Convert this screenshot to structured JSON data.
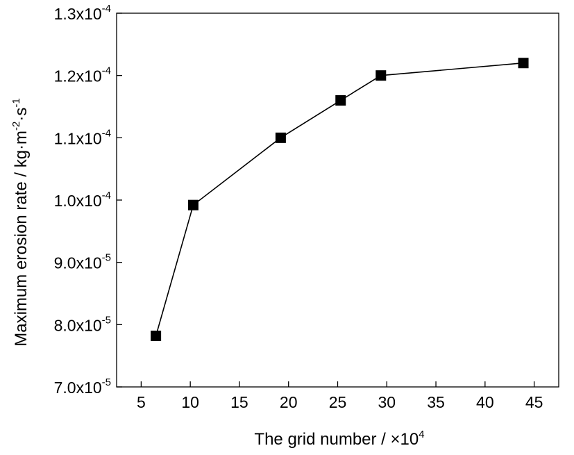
{
  "chart_data": {
    "type": "line",
    "xlabel": "The grid number / ×10",
    "xlabel_sup": "4",
    "ylabel_parts": [
      {
        "text": "Maximum erosion rate / kg·m",
        "sup": false
      },
      {
        "text": "-2",
        "sup": true
      },
      {
        "text": "·s",
        "sup": false
      },
      {
        "text": "-1",
        "sup": true
      }
    ],
    "xlim": [
      2.5,
      47.5
    ],
    "ylim": [
      7e-05,
      0.00013
    ],
    "x_ticks": [
      5,
      10,
      15,
      20,
      25,
      30,
      35,
      40,
      45
    ],
    "x_tick_labels": [
      "5",
      "10",
      "15",
      "20",
      "25",
      "30",
      "35",
      "40",
      "45"
    ],
    "y_ticks": [
      7e-05,
      8e-05,
      9e-05,
      0.0001,
      0.00011,
      0.00012,
      0.00013
    ],
    "y_tick_labels": [
      {
        "mantissa": "7.0x10",
        "exp": "-5"
      },
      {
        "mantissa": "8.0x10",
        "exp": "-5"
      },
      {
        "mantissa": "9.0x10",
        "exp": "-5"
      },
      {
        "mantissa": "1.0x10",
        "exp": "-4"
      },
      {
        "mantissa": "1.1x10",
        "exp": "-4"
      },
      {
        "mantissa": "1.2x10",
        "exp": "-4"
      },
      {
        "mantissa": "1.3x10",
        "exp": "-4"
      }
    ],
    "series": [
      {
        "marker": "square",
        "color": "#000000",
        "x": [
          6.5,
          10.3,
          19.2,
          25.3,
          29.4,
          43.9
        ],
        "y": [
          7.82e-05,
          9.92e-05,
          0.00011,
          0.000116,
          0.00012,
          0.000122
        ]
      }
    ],
    "grid": false,
    "legend": "none"
  }
}
